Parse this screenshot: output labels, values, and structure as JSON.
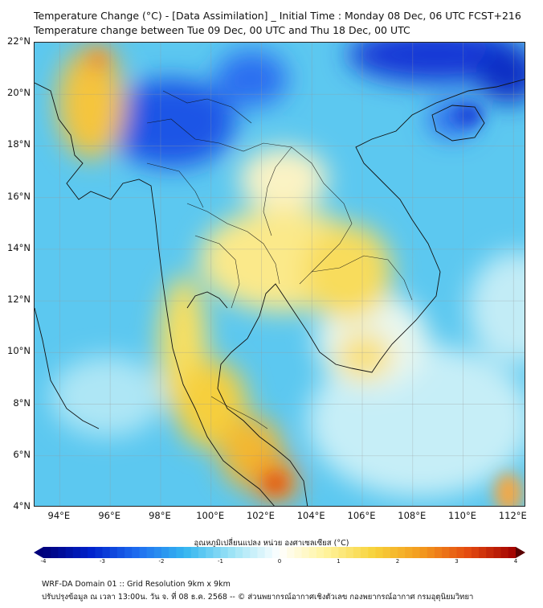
{
  "header": {
    "title_line1": "Temperature Change (°C) - [Data Assimilation] _ Initial Time : Monday 08 Dec, 06 UTC FCST+216",
    "title_line2": "Temperature change between Tue 09 Dec, 00 UTC and Thu 18 Dec, 00 UTC"
  },
  "map": {
    "y_ticks": [
      "22°N",
      "20°N",
      "18°N",
      "16°N",
      "14°N",
      "12°N",
      "10°N",
      "8°N",
      "6°N",
      "4°N"
    ],
    "x_ticks": [
      "94°E",
      "96°E",
      "98°E",
      "100°E",
      "102°E",
      "104°E",
      "106°E",
      "108°E",
      "110°E",
      "112°E"
    ],
    "lat_range": [
      4,
      22
    ],
    "lon_range": [
      93,
      112.5
    ],
    "base_color": "#5cc8f0"
  },
  "colorbar": {
    "label": "อุณหภูมิเปลี่ยนแปลง หน่วย องศาเซลเซียส (°C)",
    "ticks": [
      "-4",
      "-3",
      "-2",
      "-1",
      "0",
      "1",
      "2",
      "3",
      "4"
    ],
    "range": [
      -4,
      4
    ],
    "colors": [
      "#00007a",
      "#0022cc",
      "#1e6ef0",
      "#35b6f0",
      "#9ee4f6",
      "#ffffff",
      "#fff39a",
      "#f7d23a",
      "#f39a1e",
      "#e44a10",
      "#a00000"
    ]
  },
  "footer": {
    "line1": "WRF-DA Domain 01 :: Grid Resolution 9km x 9km",
    "line2": "ปรับปรุงข้อมูล ณ เวลา 13:00น. วัน จ. ที่ 08 ธ.ค. 2568 -- © ส่วนพยากรณ์อากาศเชิงตัวเลข กองพยากรณ์อากาศ กรมอุตุนิยมวิทยา"
  }
}
